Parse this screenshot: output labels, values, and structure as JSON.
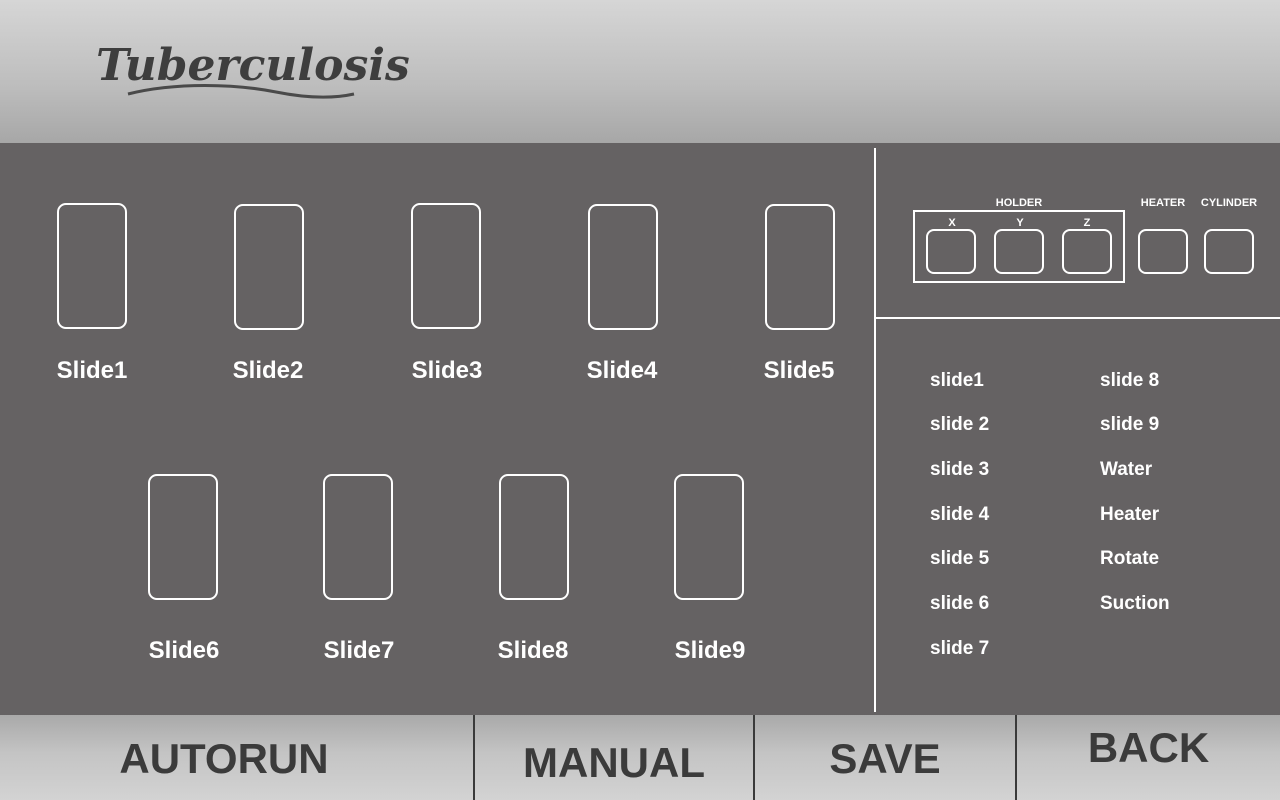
{
  "app": {
    "logo_text": "Tuberculosis"
  },
  "slides_row1": [
    {
      "label": "Slide1"
    },
    {
      "label": "Slide2"
    },
    {
      "label": "Slide3"
    },
    {
      "label": "Slide4"
    },
    {
      "label": "Slide5"
    }
  ],
  "slides_row2": [
    {
      "label": "Slide6"
    },
    {
      "label": "Slide7"
    },
    {
      "label": "Slide8"
    },
    {
      "label": "Slide9"
    }
  ],
  "controls": {
    "holder_label": "HOLDER",
    "x_label": "X",
    "y_label": "Y",
    "z_label": "Z",
    "heater_label": "HEATER",
    "cylinder_label": "CYLINDER"
  },
  "sequence_list": {
    "col1": [
      "slide1",
      "slide 2",
      "slide 3",
      "slide 4",
      "slide 5",
      "slide 6",
      "slide 7"
    ],
    "col2": [
      "slide 8",
      "slide 9",
      "Water",
      "Heater",
      "Rotate",
      "Suction"
    ]
  },
  "footer": {
    "autorun": "AUTORUN",
    "manual": "MANUAL",
    "save": "SAVE",
    "back": "BACK"
  },
  "colors": {
    "panel_bg": "#656263",
    "outline": "#ffffff",
    "footer_text": "#3b3b3b"
  }
}
